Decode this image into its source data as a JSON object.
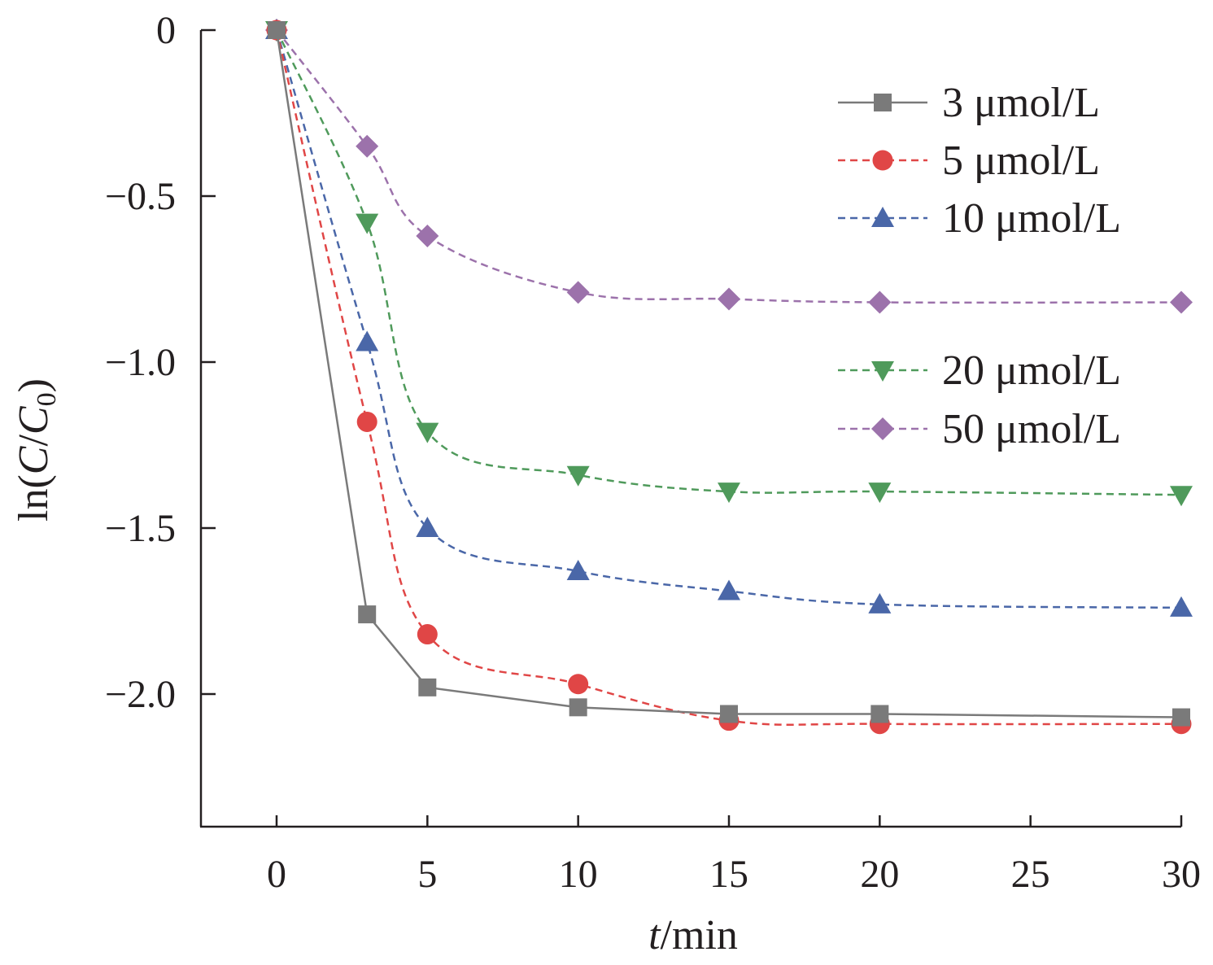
{
  "chart_data": {
    "type": "line",
    "xlabel": {
      "italic": "t",
      "rest": "/min"
    },
    "ylabel": {
      "pre": "ln(",
      "c": "C",
      "slash": "/",
      "c0": "C",
      "sub": "0",
      "post": ")"
    },
    "xlim": [
      -2.5,
      30
    ],
    "ylim": [
      -2.4,
      0
    ],
    "x_ticks": [
      0,
      5,
      10,
      15,
      20,
      25,
      30
    ],
    "x_tick_labels": [
      "0",
      "5",
      "10",
      "15",
      "20",
      "25",
      "30"
    ],
    "y_ticks": [
      0,
      -0.5,
      -1.0,
      -1.5,
      -2.0
    ],
    "y_tick_labels": [
      "0",
      "−0.5",
      "−1.0",
      "−1.5",
      "−2.0"
    ],
    "grid": false,
    "legend_position": "top-right",
    "x": [
      0,
      3,
      5,
      10,
      15,
      20,
      30
    ],
    "series": [
      {
        "name": "3 μmol/L",
        "color": "#7a7a7a",
        "marker": "square",
        "dashed": false,
        "values": [
          0,
          -1.76,
          -1.98,
          -2.04,
          -2.06,
          -2.06,
          -2.07
        ]
      },
      {
        "name": "5 μmol/L",
        "color": "#e04646",
        "marker": "circle",
        "dashed": true,
        "values": [
          0,
          -1.18,
          -1.82,
          -1.97,
          -2.08,
          -2.09,
          -2.09
        ]
      },
      {
        "name": "10 μmol/L",
        "color": "#4a67a8",
        "marker": "triangle-up",
        "dashed": true,
        "values": [
          0,
          -0.94,
          -1.5,
          -1.63,
          -1.69,
          -1.73,
          -1.74
        ]
      },
      {
        "name": "20 μmol/L",
        "color": "#4f9a5b",
        "marker": "triangle-down",
        "dashed": true,
        "values": [
          0,
          -0.58,
          -1.21,
          -1.34,
          -1.39,
          -1.39,
          -1.4
        ]
      },
      {
        "name": "50 μmol/L",
        "color": "#9c72ab",
        "marker": "diamond",
        "dashed": true,
        "values": [
          0,
          -0.35,
          -0.62,
          -0.79,
          -0.81,
          -0.82,
          -0.82
        ]
      }
    ]
  }
}
